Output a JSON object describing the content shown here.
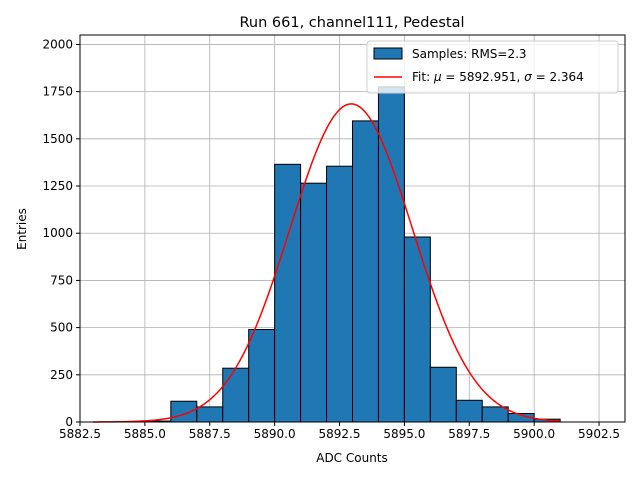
{
  "chart_data": {
    "type": "bar",
    "title": "Run 661, channel111, Pedestal",
    "xlabel": "ADC Counts",
    "ylabel": "Entries",
    "xlim": [
      5882.5,
      5903.5
    ],
    "ylim": [
      0,
      2050
    ],
    "xticks": [
      5882.5,
      5885.0,
      5887.5,
      5890.0,
      5892.5,
      5895.0,
      5897.5,
      5900.0,
      5902.5
    ],
    "xtick_labels": [
      "5882.5",
      "5885.0",
      "5887.5",
      "5890.0",
      "5892.5",
      "5895.0",
      "5897.5",
      "5900.0",
      "5902.5"
    ],
    "yticks": [
      0,
      250,
      500,
      750,
      1000,
      1250,
      1500,
      1750,
      2000
    ],
    "ytick_labels": [
      "0",
      "250",
      "500",
      "750",
      "1000",
      "1250",
      "1500",
      "1750",
      "2000"
    ],
    "grid": true,
    "legend_position": "top-right",
    "bin_width": 1,
    "bins": [
      {
        "x": 5885,
        "value": 5
      },
      {
        "x": 5886,
        "value": 110
      },
      {
        "x": 5887,
        "value": 80
      },
      {
        "x": 5888,
        "value": 285
      },
      {
        "x": 5889,
        "value": 490
      },
      {
        "x": 5890,
        "value": 1365
      },
      {
        "x": 5891,
        "value": 1265
      },
      {
        "x": 5892,
        "value": 1355
      },
      {
        "x": 5893,
        "value": 1595
      },
      {
        "x": 5894,
        "value": 1775
      },
      {
        "x": 5895,
        "value": 980
      },
      {
        "x": 5896,
        "value": 290
      },
      {
        "x": 5897,
        "value": 115
      },
      {
        "x": 5898,
        "value": 80
      },
      {
        "x": 5899,
        "value": 45
      },
      {
        "x": 5900,
        "value": 15
      }
    ],
    "fit": {
      "mu": 5892.951,
      "sigma": 2.364,
      "amplitude": 1685,
      "x_range": [
        5883.0,
        5901.0
      ]
    },
    "series": [
      {
        "name": "Samples: RMS=2.3",
        "kind": "histogram",
        "color": "#1f77b4",
        "edge_color": "#000000"
      },
      {
        "name_prefix": "Fit: ",
        "name_mu_symbol": "μ",
        "name_mu_value": " = 5892.951, ",
        "name_sigma_symbol": "σ",
        "name_sigma_value": " = 2.364",
        "kind": "line",
        "color": "#ff0000"
      }
    ]
  }
}
